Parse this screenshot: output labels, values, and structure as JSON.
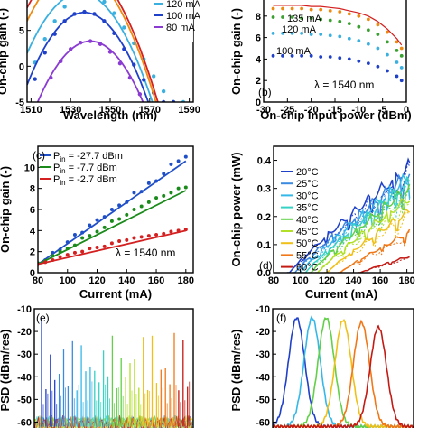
{
  "chart_data": [
    {
      "panel": "a",
      "type": "scatter",
      "xlabel": "Wavelength (nm)",
      "ylabel": "On-chip gain (-)",
      "xlim": [
        1508,
        1592
      ],
      "ylim": [
        -5,
        10
      ],
      "xticks": [
        1510,
        1530,
        1550,
        1570,
        1590
      ],
      "yticks": [
        -5,
        0,
        5,
        10
      ],
      "legend_placement": "top-right",
      "series": [
        {
          "name": "120 mA",
          "color": "#3ab0e0",
          "fit": {
            "peak_x": 1535,
            "peak_y": 10.2,
            "curv": 0.0115
          },
          "points_x": [
            1512,
            1517,
            1522,
            1527,
            1532,
            1537,
            1542,
            1547,
            1552,
            1557,
            1562,
            1567,
            1572,
            1577,
            1582,
            1587
          ],
          "points_y": [
            0.5,
            3.8,
            6.3,
            8.3,
            9.6,
            10.1,
            9.9,
            9.0,
            7.4,
            5.4,
            3.2,
            1.0,
            -1.4,
            -3.5,
            -5.0,
            -5.0
          ]
        },
        {
          "name": "100 mA",
          "color": "#1f40c8",
          "fit": {
            "peak_x": 1537,
            "peak_y": 7.5,
            "curv": 0.012
          },
          "points_x": [
            1512,
            1517,
            1522,
            1527,
            1532,
            1537,
            1542,
            1547,
            1552,
            1557,
            1562,
            1567,
            1572,
            1577,
            1582
          ],
          "points_y": [
            -1.8,
            1.9,
            4.5,
            6.3,
            7.3,
            7.6,
            7.3,
            6.3,
            4.6,
            2.4,
            0.2,
            -1.9,
            -3.7,
            -5.0,
            -5.0
          ]
        },
        {
          "name": "80 mA",
          "color": "#8a3bd2",
          "fit": {
            "peak_x": 1540,
            "peak_y": 3.5,
            "curv": 0.012
          },
          "points_x": [
            1520,
            1525,
            1530,
            1535,
            1540,
            1545,
            1550,
            1555,
            1560,
            1565
          ],
          "points_y": [
            -1.6,
            0.7,
            2.4,
            3.3,
            3.5,
            3.1,
            2.0,
            0.4,
            -1.6,
            -3.9
          ]
        }
      ]
    },
    {
      "panel": "b",
      "type": "scatter",
      "xlabel": "On-chip input power (dBm)",
      "ylabel": "On-chip gain (-)",
      "xlim": [
        -30,
        0
      ],
      "ylim": [
        0,
        10
      ],
      "xticks": [
        -30,
        -25,
        -20,
        -15,
        -10,
        -5,
        0
      ],
      "yticks": [
        0,
        2,
        4,
        6,
        8
      ],
      "annotation": "λ = 1540 nm",
      "series": [
        {
          "name": "",
          "color": "#ee8a10",
          "points_x": [
            -28,
            -26,
            -24,
            -22,
            -20,
            -18,
            -16,
            -14,
            -12,
            -10,
            -8,
            -6,
            -4,
            -2,
            -1
          ],
          "points_y": [
            8.7,
            8.7,
            8.7,
            8.7,
            8.6,
            8.6,
            8.5,
            8.4,
            8.2,
            8.0,
            7.7,
            7.2,
            6.5,
            5.6,
            5.0
          ]
        },
        {
          "name": "135 mA",
          "color": "#3aa030",
          "points_x": [
            -28,
            -26,
            -24,
            -22,
            -20,
            -18,
            -16,
            -14,
            -12,
            -10,
            -8,
            -6,
            -4,
            -2,
            -1
          ],
          "points_y": [
            7.9,
            7.9,
            7.9,
            7.8,
            7.8,
            7.7,
            7.6,
            7.5,
            7.3,
            7.0,
            6.7,
            6.3,
            5.6,
            4.8,
            4.3
          ]
        },
        {
          "name": "120 mA",
          "color": "#3ab0e0",
          "points_x": [
            -28,
            -26,
            -24,
            -22,
            -20,
            -18,
            -16,
            -14,
            -12,
            -10,
            -8,
            -6,
            -4,
            -2,
            -1
          ],
          "points_y": [
            6.4,
            6.4,
            6.4,
            6.4,
            6.3,
            6.3,
            6.2,
            6.1,
            5.9,
            5.7,
            5.4,
            5.0,
            4.4,
            3.7,
            3.2
          ]
        },
        {
          "name": "100 mA",
          "color": "#1f40c8",
          "points_x": [
            -28,
            -26,
            -24,
            -22,
            -20,
            -18,
            -16,
            -14,
            -12,
            -10,
            -8,
            -6,
            -4,
            -2,
            -1
          ],
          "points_y": [
            4.3,
            4.3,
            4.3,
            4.3,
            4.3,
            4.2,
            4.2,
            4.1,
            4.0,
            3.8,
            3.6,
            3.3,
            2.9,
            2.4,
            2.0
          ]
        }
      ]
    },
    {
      "panel": "c",
      "type": "scatter",
      "xlabel": "Current (mA)",
      "ylabel": "On-chip gain (-)",
      "xlim": [
        80,
        185
      ],
      "ylim": [
        0,
        12
      ],
      "xticks": [
        80,
        100,
        120,
        140,
        160,
        180
      ],
      "yticks": [
        0,
        2,
        4,
        6,
        8,
        10
      ],
      "annotation": "λ = 1540 nm",
      "legend_placement": "top-left",
      "legend": [
        {
          "prefix": "P",
          "sub": "in",
          "value": " = -27.7 dBm",
          "color": "#1f4fc8"
        },
        {
          "prefix": "P",
          "sub": "in",
          "value": " =  -7.7 dBm",
          "color": "#1a8a1a"
        },
        {
          "prefix": "P",
          "sub": "in",
          "value": " =  -2.7 dBm",
          "color": "#d42020"
        }
      ],
      "series": [
        {
          "name": "-27.7 dBm",
          "color": "#1f4fc8",
          "fit": [
            80,
            0.8,
            180,
            10.6
          ],
          "points_x": [
            80,
            85,
            90,
            95,
            100,
            105,
            110,
            115,
            120,
            125,
            130,
            135,
            140,
            145,
            150,
            155,
            160,
            165,
            170,
            175,
            180
          ],
          "points_y": [
            0.9,
            1.2,
            1.9,
            2.2,
            2.9,
            3.6,
            3.8,
            4.5,
            5.0,
            5.3,
            6.0,
            6.4,
            6.7,
            7.6,
            7.7,
            8.5,
            8.7,
            9.4,
            10.3,
            10.6,
            11.0
          ]
        },
        {
          "name": "-7.7 dBm",
          "color": "#1a8a1a",
          "fit": [
            80,
            0.8,
            180,
            7.8
          ],
          "points_x": [
            80,
            85,
            90,
            95,
            100,
            105,
            110,
            115,
            120,
            125,
            130,
            135,
            140,
            145,
            150,
            155,
            160,
            165,
            170,
            175,
            180
          ],
          "points_y": [
            0.9,
            1.1,
            1.6,
            2.0,
            2.3,
            2.6,
            3.3,
            3.5,
            3.9,
            4.3,
            4.9,
            5.1,
            5.5,
            6.0,
            6.3,
            6.7,
            7.1,
            7.3,
            7.6,
            8.0,
            8.1
          ]
        },
        {
          "name": "-2.7 dBm",
          "color": "#d42020",
          "fit": [
            80,
            0.8,
            180,
            4.0
          ],
          "points_x": [
            80,
            85,
            90,
            95,
            100,
            105,
            110,
            115,
            120,
            125,
            130,
            135,
            140,
            145,
            150,
            155,
            160,
            165,
            170,
            175,
            180
          ],
          "points_y": [
            0.8,
            1.0,
            1.2,
            1.5,
            1.7,
            1.9,
            2.0,
            2.3,
            2.4,
            2.5,
            2.8,
            3.0,
            3.1,
            3.3,
            3.4,
            3.5,
            3.6,
            3.7,
            3.9,
            4.0,
            4.1
          ]
        }
      ]
    },
    {
      "panel": "d",
      "type": "line",
      "xlabel": "Current (mA)",
      "ylabel": "On-chip power (mW)",
      "xlim": [
        80,
        185
      ],
      "ylim": [
        0,
        0.45
      ],
      "xticks": [
        80,
        100,
        120,
        140,
        160,
        180
      ],
      "yticks": [
        0,
        0.1,
        0.2,
        0.3,
        0.4
      ],
      "legend_placement": "top-left",
      "series": [
        {
          "name": "20°C",
          "color": "#1f40c8",
          "threshold": 92,
          "peak": 0.4
        },
        {
          "name": "25°C",
          "color": "#3a8ae0",
          "threshold": 96,
          "peak": 0.37
        },
        {
          "name": "30°C",
          "color": "#34b8e8",
          "threshold": 100,
          "peak": 0.36
        },
        {
          "name": "35°C",
          "color": "#36d2c4",
          "threshold": 104,
          "peak": 0.34
        },
        {
          "name": "40°C",
          "color": "#62d048",
          "threshold": 108,
          "peak": 0.32
        },
        {
          "name": "45°C",
          "color": "#b2e028",
          "threshold": 113,
          "peak": 0.28
        },
        {
          "name": "50°C",
          "color": "#f0c018",
          "threshold": 120,
          "peak": 0.23
        },
        {
          "name": "55°C",
          "color": "#f07818",
          "threshold": 130,
          "peak": 0.15
        },
        {
          "name": "60°C",
          "color": "#c41a14",
          "threshold": 145,
          "peak": 0.06
        }
      ]
    },
    {
      "panel": "e",
      "type": "line",
      "ylabel": "PSD (dBm/res)",
      "ylim": [
        -65,
        -10
      ],
      "yticks": [
        -60,
        -50,
        -40,
        -30,
        -20,
        -10
      ],
      "colors": [
        "#1f40c8",
        "#3a8ae0",
        "#34b8e8",
        "#36d2c4",
        "#62d048",
        "#b2e028",
        "#f0c018",
        "#f07818",
        "#c41a14"
      ]
    },
    {
      "panel": "f",
      "type": "line",
      "ylabel": "PSD (dBm/res)",
      "ylim": [
        -65,
        -10
      ],
      "yticks": [
        -60,
        -50,
        -40,
        -30,
        -20,
        -10
      ],
      "series": [
        {
          "color": "#1f40c8",
          "center": 0.17,
          "peak": -14
        },
        {
          "color": "#34b8e8",
          "center": 0.28,
          "peak": -14
        },
        {
          "color": "#62d048",
          "center": 0.38,
          "peak": -14
        },
        {
          "color": "#f0c018",
          "center": 0.5,
          "peak": -15
        },
        {
          "color": "#f07818",
          "center": 0.63,
          "peak": -16
        },
        {
          "color": "#c41a14",
          "center": 0.75,
          "peak": -18
        }
      ]
    }
  ],
  "labels": {
    "a_xlabel": "Wavelength (nm)",
    "a_ylabel": "On-chip gain (-)",
    "b_xlabel": "On-chip input power (dBm)",
    "b_ylabel": "On-chip gain (-)",
    "b_tag": "(b)",
    "b_ann": "λ = 1540 nm",
    "c_xlabel": "Current (mA)",
    "c_ylabel": "On-chip gain (-)",
    "c_tag": "(c)",
    "c_ann": "λ = 1540 nm",
    "d_xlabel": "Current (mA)",
    "d_ylabel": "On-chip power (mW)",
    "d_tag": "(d)",
    "e_ylabel": "PSD (dBm/res)",
    "e_tag": "(e)",
    "f_ylabel": "PSD (dBm/res)",
    "f_tag": "(f)"
  }
}
